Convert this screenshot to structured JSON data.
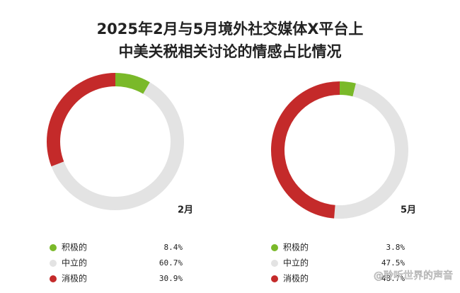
{
  "title": [
    "2025年2月与5月境外社交媒体X平台上",
    "中美关税相关讨论的情感占比情况"
  ],
  "watermark": "@聆听世界的声音",
  "chart_data": [
    {
      "type": "donut",
      "label": "2月",
      "categories": [
        "积极的",
        "中立的",
        "消极的"
      ],
      "values": [
        8.4,
        60.7,
        30.9
      ],
      "value_labels": [
        "8.4%",
        "60.7%",
        "30.9%"
      ],
      "colors": [
        "#7ab929",
        "#e3e3e3",
        "#c42a2a"
      ]
    },
    {
      "type": "donut",
      "label": "5月",
      "categories": [
        "积极的",
        "中立的",
        "消极的"
      ],
      "values": [
        3.8,
        47.5,
        48.7
      ],
      "value_labels": [
        "3.8%",
        "47.5%",
        "48.7%"
      ],
      "colors": [
        "#7ab929",
        "#e3e3e3",
        "#c42a2a"
      ]
    }
  ]
}
